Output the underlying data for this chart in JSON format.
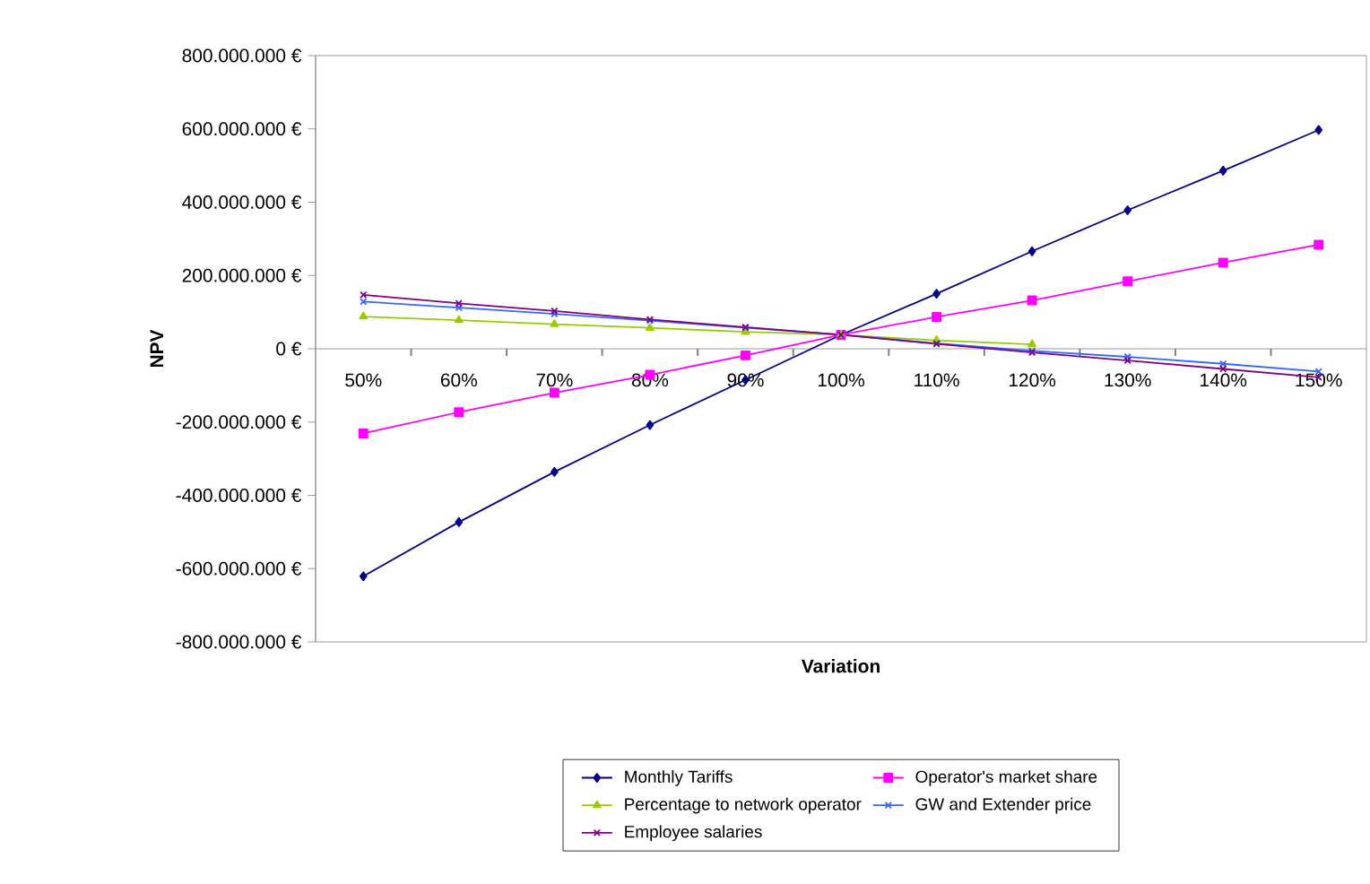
{
  "chart_data": {
    "type": "line",
    "xlabel": "Variation",
    "ylabel": "NPV",
    "categories": [
      "50%",
      "60%",
      "70%",
      "80%",
      "90%",
      "100%",
      "110%",
      "120%",
      "130%",
      "140%",
      "150%"
    ],
    "ylim": [
      -800000000,
      800000000
    ],
    "yticks": [
      {
        "value": -800000000,
        "label": "-800.000.000 €"
      },
      {
        "value": -600000000,
        "label": "-600.000.000 €"
      },
      {
        "value": -400000000,
        "label": "-400.000.000 €"
      },
      {
        "value": -200000000,
        "label": "-200.000.000 €"
      },
      {
        "value": 0,
        "label": "0 €"
      },
      {
        "value": 200000000,
        "label": "200.000.000 €"
      },
      {
        "value": 400000000,
        "label": "400.000.000 €"
      },
      {
        "value": 600000000,
        "label": "600.000.000 €"
      },
      {
        "value": 800000000,
        "label": "800.000.000 €"
      }
    ],
    "legend": "bottom",
    "grid": false,
    "series": [
      {
        "name": "Monthly Tariffs",
        "color": "#000080",
        "marker": "diamond",
        "values": [
          -621000000,
          -473000000,
          -336000000,
          -208000000,
          -85000000,
          38000000,
          150000000,
          266000000,
          378000000,
          486000000,
          597000000
        ]
      },
      {
        "name": "Operator's market share",
        "color": "#ff00ff",
        "marker": "square",
        "values": [
          -231000000,
          -173000000,
          -120000000,
          -71000000,
          -18000000,
          38000000,
          87000000,
          132000000,
          184000000,
          235000000,
          284000000
        ]
      },
      {
        "name": "Percentage to network operator",
        "color": "#99cc00",
        "marker": "triangle",
        "values": [
          88000000,
          78000000,
          67000000,
          57000000,
          46000000,
          38000000,
          23000000,
          12000000,
          null,
          null,
          null
        ]
      },
      {
        "name": "GW and Extender price",
        "color": "#3366ff",
        "marker": "cross",
        "values": [
          129000000,
          112000000,
          95000000,
          77000000,
          57000000,
          38000000,
          15000000,
          -6000000,
          -22000000,
          -41000000,
          -62000000
        ]
      },
      {
        "name": "Employee salaries",
        "color": "#800080",
        "marker": "cross",
        "values": [
          147000000,
          124000000,
          103000000,
          80000000,
          59000000,
          38000000,
          13000000,
          -10000000,
          -32000000,
          -55000000,
          -78000000
        ]
      }
    ]
  }
}
